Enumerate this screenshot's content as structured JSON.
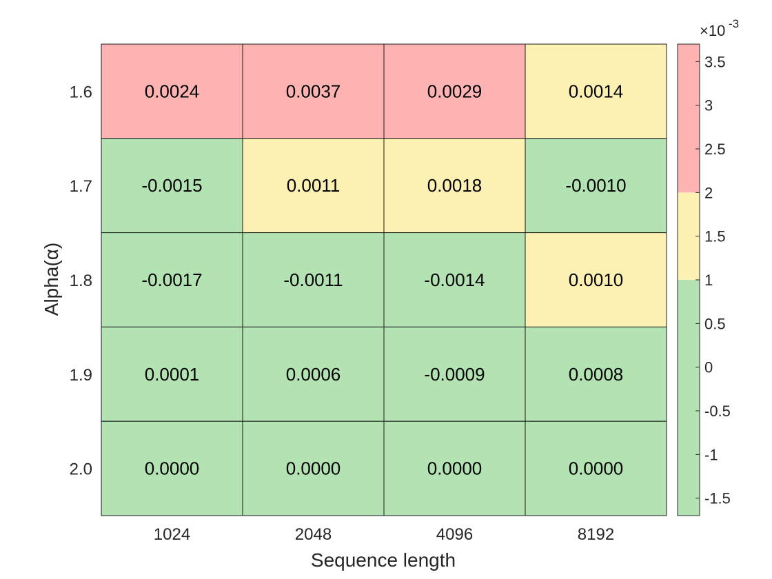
{
  "chart_data": {
    "type": "heatmap",
    "title": "",
    "xlabel": "Sequence length",
    "ylabel": "Alpha(α)",
    "x_categories": [
      "1024",
      "2048",
      "4096",
      "8192"
    ],
    "y_categories": [
      "1.6",
      "1.7",
      "1.8",
      "1.9",
      "2.0"
    ],
    "values": [
      [
        "0.0024",
        "0.0037",
        "0.0029",
        "0.0014"
      ],
      [
        "-0.0015",
        "0.0011",
        "0.0018",
        "-0.0010"
      ],
      [
        "-0.0017",
        "-0.0011",
        "-0.0014",
        "0.0010"
      ],
      [
        "0.0001",
        "0.0006",
        "-0.0009",
        "0.0008"
      ],
      [
        "0.0000",
        "0.0000",
        "0.0000",
        "0.0000"
      ]
    ],
    "colorbar": {
      "multiplier_text": "×10",
      "multiplier_exponent": "-3",
      "range": [
        -1.7,
        3.7
      ],
      "ticks": [
        {
          "label": "3.5",
          "value": 3.5
        },
        {
          "label": "3",
          "value": 3.0
        },
        {
          "label": "2.5",
          "value": 2.5
        },
        {
          "label": "2",
          "value": 2.0
        },
        {
          "label": "1.5",
          "value": 1.5
        },
        {
          "label": "1",
          "value": 1.0
        },
        {
          "label": "0.5",
          "value": 0.5
        },
        {
          "label": "0",
          "value": 0.0
        },
        {
          "label": "-0.5",
          "value": -0.5
        },
        {
          "label": "-1",
          "value": -1.0
        },
        {
          "label": "-1.5",
          "value": -1.5
        }
      ],
      "bands": [
        {
          "from": -1.7,
          "to": 1.0,
          "color": "#b3e3b3"
        },
        {
          "from": 1.0,
          "to": 2.0,
          "color": "#fdf0b3"
        },
        {
          "from": 2.0,
          "to": 3.7,
          "color": "#feb3b3"
        }
      ]
    }
  }
}
